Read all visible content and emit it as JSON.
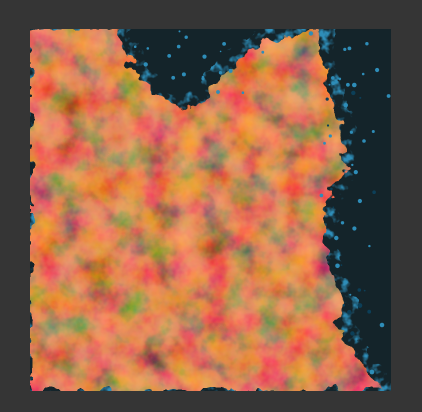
{
  "colors": {
    "window_background": "#353535",
    "void_background": "#14242a",
    "ground_light": "#f7a06c",
    "ground_mid": "#de8757",
    "ground_dark": "#3a2419",
    "edge_glow": "#2e8db8",
    "edge_dark": "#0c3f58"
  },
  "canvas": {
    "content": "procedural-noise-texture",
    "icon": "noise-texture-image"
  }
}
